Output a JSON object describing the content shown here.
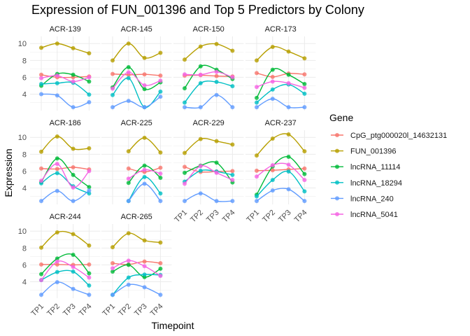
{
  "chart_data": {
    "type": "line",
    "title": "Expression of FUN_001396 and Top 5 Predictors by Colony",
    "xlabel": "Timepoint",
    "ylabel": "Expression",
    "x": [
      "TP1",
      "TP2",
      "TP3",
      "TP4"
    ],
    "ylim": [
      2.05,
      10.85
    ],
    "yticks": [
      4,
      6,
      8,
      10
    ],
    "grid": true,
    "legend": {
      "title": "Gene",
      "placement": "right"
    },
    "genes": [
      "CpG_ptg000020l_14632131",
      "FUN_001396",
      "lncRNA_11114",
      "lncRNA_18294",
      "lncRNA_240",
      "lncRNA_5041"
    ],
    "colors": [
      "#F8766D",
      "#B79F00",
      "#00BA38",
      "#00BFC4",
      "#619CFF",
      "#F564E3"
    ],
    "facets": [
      {
        "name": "ACR-139",
        "series": [
          [
            6.3,
            6.0,
            6.0,
            6.1
          ],
          [
            9.5,
            10.0,
            9.45,
            8.85
          ],
          [
            5.0,
            6.4,
            6.3,
            5.5
          ],
          [
            5.2,
            5.3,
            5.35,
            3.95
          ],
          [
            4.0,
            3.85,
            2.45,
            3.05
          ],
          [
            5.9,
            6.2,
            5.5,
            6.0
          ]
        ]
      },
      {
        "name": "ACR-145",
        "series": [
          [
            6.4,
            6.3,
            6.35,
            6.2
          ],
          [
            8.0,
            10.0,
            8.3,
            8.9
          ],
          [
            4.8,
            7.2,
            4.6,
            5.4
          ],
          [
            3.9,
            5.9,
            2.45,
            4.3
          ],
          [
            2.45,
            3.2,
            2.45,
            3.7
          ],
          [
            4.65,
            6.6,
            5.05,
            5.6
          ]
        ]
      },
      {
        "name": "ACR-150",
        "series": [
          [
            6.2,
            6.25,
            6.15,
            6.1
          ],
          [
            8.1,
            9.65,
            9.95,
            9.15
          ],
          [
            4.7,
            7.3,
            6.9,
            5.8
          ],
          [
            3.0,
            5.3,
            5.45,
            4.95
          ],
          [
            2.45,
            2.45,
            3.9,
            2.45
          ],
          [
            6.35,
            6.3,
            6.65,
            6.0
          ]
        ]
      },
      {
        "name": "ACR-173",
        "series": [
          [
            6.5,
            6.05,
            6.45,
            6.35
          ],
          [
            8.0,
            9.6,
            9.05,
            8.25
          ],
          [
            3.55,
            6.9,
            6.3,
            5.2
          ],
          [
            3.0,
            4.55,
            5.15,
            4.05
          ],
          [
            2.45,
            3.45,
            2.45,
            2.45
          ],
          [
            4.85,
            5.5,
            5.3,
            4.75
          ]
        ]
      },
      {
        "name": "ACR-186",
        "series": [
          [
            6.3,
            6.25,
            6.45,
            6.2
          ],
          [
            8.3,
            10.1,
            8.65,
            8.7
          ],
          [
            4.7,
            7.5,
            5.55,
            4.1
          ],
          [
            4.55,
            5.75,
            4.2,
            3.35
          ],
          [
            2.45,
            3.65,
            2.45,
            3.7
          ],
          [
            4.85,
            6.85,
            4.05,
            6.0
          ]
        ]
      },
      {
        "name": "ACR-225",
        "series": [
          [
            null,
            6.3,
            5.9,
            6.4
          ],
          [
            null,
            8.35,
            9.95,
            8.2
          ],
          [
            null,
            4.6,
            6.65,
            5.2
          ],
          [
            null,
            2.45,
            5.3,
            3.35
          ],
          [
            null,
            2.45,
            4.5,
            2.45
          ],
          [
            null,
            5.1,
            6.15,
            5.7
          ]
        ]
      },
      {
        "name": "ACR-229",
        "series": [
          [
            6.5,
            5.9,
            5.95,
            6.0
          ],
          [
            8.15,
            9.8,
            9.55,
            9.15
          ],
          [
            5.8,
            6.65,
            7.0,
            4.65
          ],
          [
            4.75,
            6.05,
            5.95,
            5.55
          ],
          [
            2.45,
            3.35,
            2.45,
            2.45
          ],
          [
            4.5,
            6.6,
            5.8,
            4.95
          ]
        ]
      },
      {
        "name": "ACR-237",
        "series": [
          [
            6.05,
            6.1,
            6.2,
            6.3
          ],
          [
            7.85,
            9.85,
            10.35,
            8.35
          ],
          [
            3.2,
            6.55,
            7.7,
            5.65
          ],
          [
            3.0,
            4.95,
            5.95,
            3.6
          ],
          [
            2.45,
            3.7,
            3.85,
            2.45
          ],
          [
            5.35,
            6.7,
            6.75,
            4.95
          ]
        ]
      },
      {
        "name": "ACR-244",
        "series": [
          [
            6.05,
            6.05,
            6.0,
            6.05
          ],
          [
            8.05,
            9.85,
            9.65,
            8.3
          ],
          [
            4.9,
            6.75,
            7.2,
            5.0
          ],
          [
            4.2,
            5.15,
            5.2,
            3.55
          ],
          [
            2.45,
            3.95,
            3.15,
            2.45
          ],
          [
            4.2,
            6.4,
            5.75,
            4.5
          ]
        ]
      },
      {
        "name": "ACR-265",
        "series": [
          [
            6.2,
            6.05,
            6.4,
            6.2
          ],
          [
            8.1,
            9.75,
            8.9,
            8.65
          ],
          [
            5.2,
            6.0,
            4.55,
            5.55
          ],
          [
            2.45,
            4.5,
            4.85,
            4.8
          ],
          [
            2.45,
            3.65,
            3.35,
            2.45
          ],
          [
            5.6,
            6.5,
            5.85,
            4.7
          ]
        ]
      }
    ]
  }
}
